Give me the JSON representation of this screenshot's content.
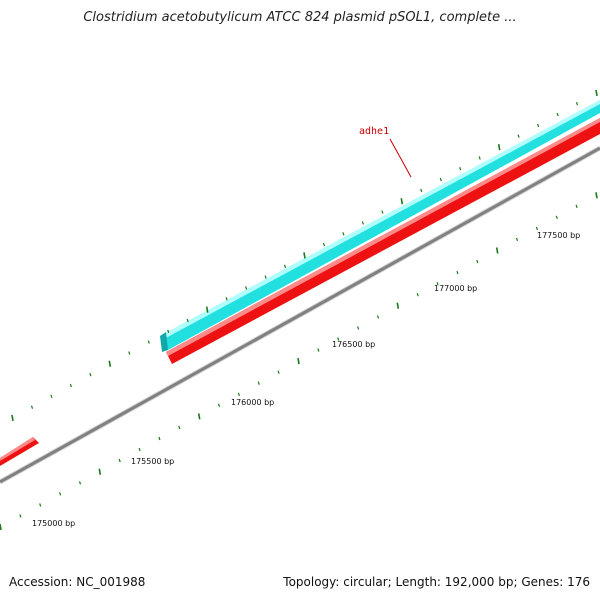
{
  "title": "Clostridium acetobutylicum ATCC 824 plasmid pSOL1, complete ...",
  "footer": {
    "accession": "Accession: NC_001988",
    "summary": "Topology: circular; Length: 192,000 bp; Genes: 176"
  },
  "colors": {
    "backbone": "#808080",
    "forward_gene": "#22e0e0",
    "reverse_gene": "#ee1111",
    "tick": "#1a7a1a",
    "gene_label": "#cc0000"
  },
  "genes": [
    {
      "name": "adhe1",
      "strand": "forward",
      "color": "#22e0e0"
    }
  ],
  "position_labels": [
    "175000 bp",
    "175500 bp",
    "176000 bp",
    "176500 bp",
    "177000 bp",
    "177500 bp"
  ]
}
